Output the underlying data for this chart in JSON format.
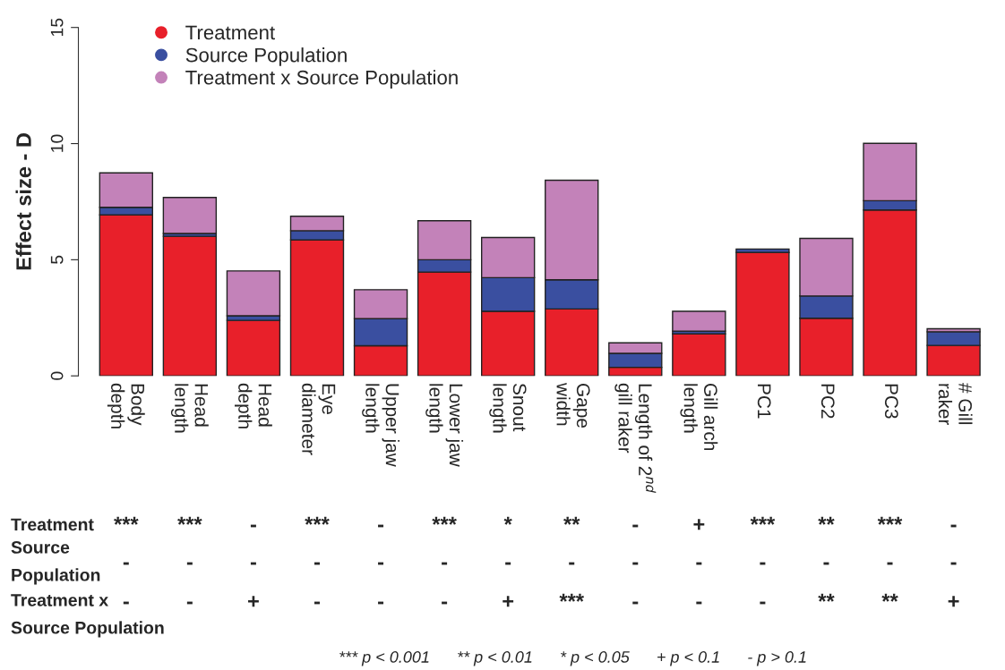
{
  "chart_data": {
    "type": "bar",
    "stacked": true,
    "ylabel": "Effect size - D",
    "categories": [
      "Body\ndepth",
      "Head\nlength",
      "Head\ndepth",
      "Eye\ndiameter",
      "Upper jaw\nlength",
      "Lower jaw\nlength",
      "Snout\nlength",
      "Gape\nwidth",
      "Length of 2$^{nd}$\ngill raker",
      "Gill arch\nlength",
      "PC1",
      "PC2",
      "PC3",
      "# Gill\nraker"
    ],
    "series": [
      {
        "name": "Treatment",
        "color": "#e8202a",
        "values": [
          6.93,
          6.01,
          2.39,
          5.85,
          1.3,
          4.47,
          2.78,
          2.88,
          0.37,
          1.81,
          5.31,
          2.48,
          7.14,
          1.31
        ]
      },
      {
        "name": "Source Population",
        "color": "#3a4fa0",
        "values": [
          0.33,
          0.12,
          0.2,
          0.4,
          1.16,
          0.53,
          1.45,
          1.26,
          0.6,
          0.12,
          0.15,
          0.96,
          0.4,
          0.59
        ]
      },
      {
        "name": "Treatment x Source Population",
        "color": "#c382b9",
        "values": [
          1.48,
          1.55,
          1.93,
          0.62,
          1.25,
          1.68,
          1.73,
          4.28,
          0.45,
          0.85,
          null,
          2.48,
          2.47,
          0.13
        ]
      }
    ],
    "ylim": [
      0,
      15
    ],
    "yticks": [
      0,
      5,
      10,
      15
    ],
    "legend": "top left",
    "marker": "circle",
    "grid": false,
    "annotations": [
      "Treatment",
      "***",
      "***",
      "-",
      "***",
      "-",
      "***",
      "*",
      "**",
      "-",
      "+",
      "***",
      "**",
      "***",
      "-",
      "Source\nPopulation",
      "-",
      "-",
      "-",
      "-",
      "-",
      "-",
      "-",
      "-",
      "-",
      "-",
      "-",
      "-",
      "-",
      "-",
      "Treatment x\nSource Population",
      "-",
      "-",
      "+",
      "-",
      "-",
      "-",
      "+",
      "***",
      "-",
      "-",
      "-",
      "**",
      "**",
      "+",
      "*** p < 0.001      ** p < 0.01      * p < 0.05      + p < 0.1      - p > 0.1"
    ]
  }
}
